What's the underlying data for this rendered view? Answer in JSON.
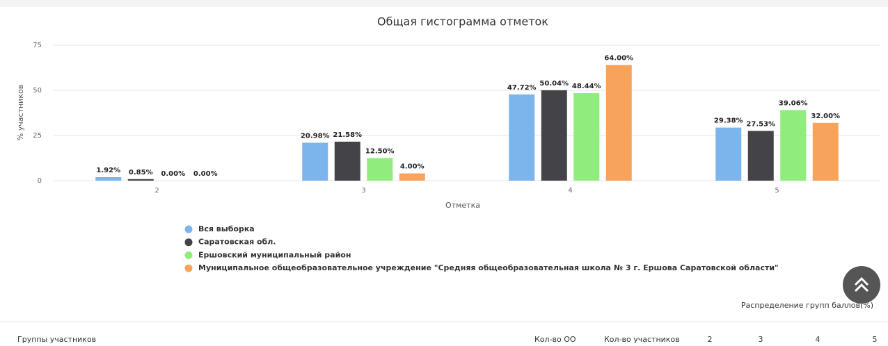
{
  "chart_data": {
    "type": "bar",
    "title": "Общая гистограмма отметок",
    "x_label": "Отметка",
    "y_label": "% участников",
    "categories": [
      "2",
      "3",
      "4",
      "5"
    ],
    "series": [
      {
        "name": "Вся выборка",
        "color": "#7cb5ec",
        "values": [
          1.92,
          20.98,
          47.72,
          29.38
        ],
        "value_labels": [
          "1.92%",
          "20.98%",
          "47.72%",
          "29.38%"
        ]
      },
      {
        "name": "Саратовская обл.",
        "color": "#434348",
        "values": [
          0.85,
          21.58,
          50.04,
          27.53
        ],
        "value_labels": [
          "0.85%",
          "21.58%",
          "50.04%",
          "27.53%"
        ]
      },
      {
        "name": "Ершовский муниципальный район",
        "color": "#90ed7d",
        "values": [
          0,
          12.5,
          48.44,
          39.06
        ],
        "value_labels": [
          "0.00%",
          "12.50%",
          "48.44%",
          "39.06%"
        ]
      },
      {
        "name": "Муниципальное общеобразовательное учреждение \"Средняя общеобразовательная школа № 3 г. Ершова Саратовской области\"",
        "color": "#f7a35c",
        "values": [
          0,
          4,
          64,
          32
        ],
        "value_labels": [
          "0.00%",
          "4.00%",
          "64.00%",
          "32.00%"
        ]
      }
    ],
    "ylim": [
      0,
      75
    ],
    "yticks": [
      0,
      25,
      50,
      75
    ],
    "grid": true
  },
  "table": {
    "caption": "Распределение групп баллов(%)",
    "header": [
      "Группы участников",
      "Кол-во ОО",
      "Кол-во участников",
      "2",
      "3",
      "4",
      "5"
    ]
  }
}
